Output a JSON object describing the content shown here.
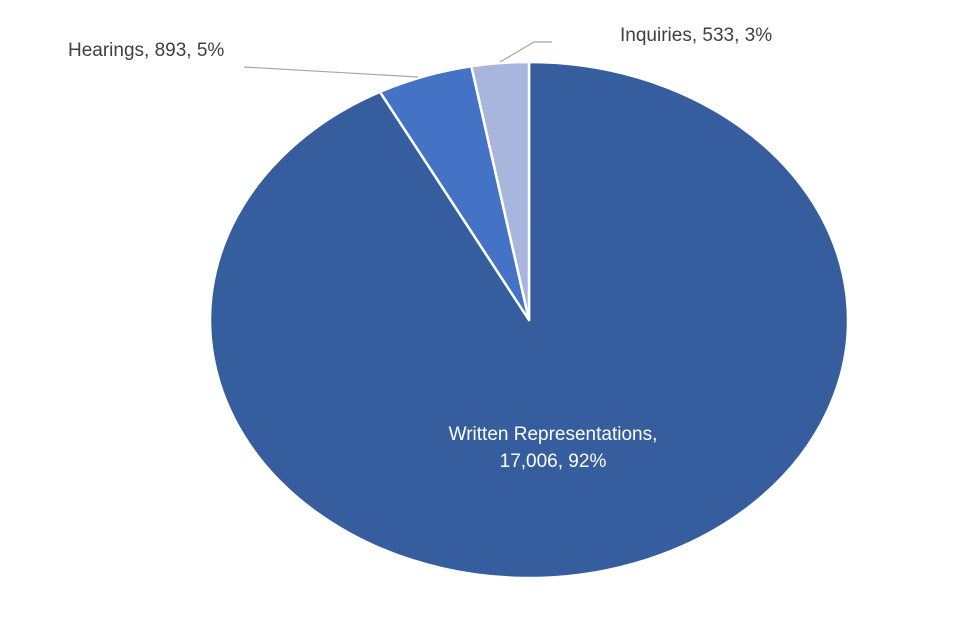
{
  "chart_data": {
    "type": "pie",
    "slices": [
      {
        "name": "Written Representations",
        "value": 17006,
        "percent": "92%",
        "color": "#365E9F",
        "label_lines": [
          "Written Representations,",
          "17,006,  92%"
        ]
      },
      {
        "name": "Hearings",
        "value": 893,
        "percent": "5%",
        "color": "#4472C4",
        "label_lines": [
          "Hearings, 893,  5%"
        ]
      },
      {
        "name": "Inquiries",
        "value": 533,
        "percent": "3%",
        "color": "#A8B6DE",
        "label_lines": [
          "Inquiries, 533, 3%"
        ]
      }
    ],
    "start_angle": "12 o'clock",
    "direction": "clockwise",
    "slice_border_color": "#FFFFFF",
    "inside_label_color": "#FFFFFF",
    "outside_label_color": "#404040",
    "leader_line_color": "#A6A6A6"
  }
}
